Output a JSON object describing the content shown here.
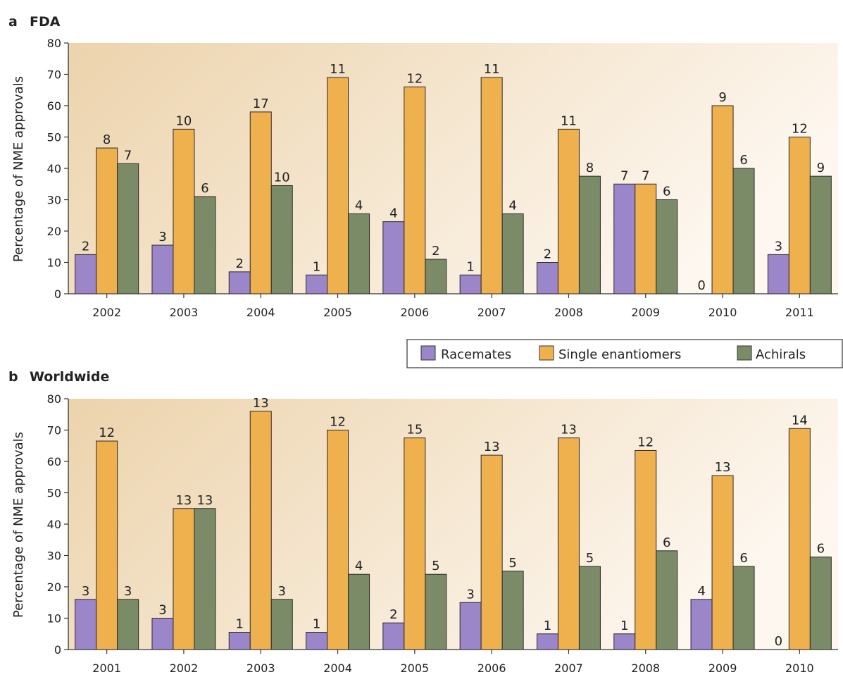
{
  "colors": {
    "racemates": "#9b86c9",
    "single_enantiomers": "#efb04e",
    "achirals": "#7c8b67",
    "background_start": "#ecd3ac",
    "background_end": "#fdf7ef"
  },
  "legend": {
    "items": [
      {
        "key": "racemates",
        "label": "Racemates"
      },
      {
        "key": "single_enantiomers",
        "label": "Single enantiomers"
      },
      {
        "key": "achirals",
        "label": "Achirals"
      }
    ]
  },
  "chart_data": [
    {
      "type": "bar",
      "panel_letter": "a",
      "title": "FDA",
      "ylabel": "Percentage of NME approvals",
      "xlabel": "",
      "ylim": [
        0,
        80
      ],
      "yticks": [
        0,
        10,
        20,
        30,
        40,
        50,
        60,
        70,
        80
      ],
      "grid": false,
      "categories": [
        "2002",
        "2003",
        "2004",
        "2005",
        "2006",
        "2007",
        "2008",
        "2009",
        "2010",
        "2011"
      ],
      "series": [
        {
          "name": "Racemates",
          "key": "racemates",
          "values": [
            12.5,
            15.5,
            7,
            6,
            23,
            6,
            10,
            35,
            0,
            12.5
          ],
          "labels": [
            "2",
            "3",
            "2",
            "1",
            "4",
            "1",
            "2",
            "7",
            "0",
            "3"
          ]
        },
        {
          "name": "Single enantiomers",
          "key": "single_enantiomers",
          "values": [
            46.5,
            52.5,
            58,
            69,
            66,
            69,
            52.5,
            35,
            60,
            50
          ],
          "labels": [
            "8",
            "10",
            "17",
            "11",
            "12",
            "11",
            "11",
            "7",
            "9",
            "12"
          ]
        },
        {
          "name": "Achirals",
          "key": "achirals",
          "values": [
            41.5,
            31,
            34.5,
            25.5,
            11,
            25.5,
            37.5,
            30,
            40,
            37.5
          ],
          "labels": [
            "7",
            "6",
            "10",
            "4",
            "2",
            "4",
            "8",
            "6",
            "6",
            "9"
          ]
        }
      ]
    },
    {
      "type": "bar",
      "panel_letter": "b",
      "title": "Worldwide",
      "ylabel": "Percentage of NME approvals",
      "xlabel": "",
      "ylim": [
        0,
        80
      ],
      "yticks": [
        0,
        10,
        20,
        30,
        40,
        50,
        60,
        70,
        80
      ],
      "grid": false,
      "categories": [
        "2001",
        "2002",
        "2003",
        "2004",
        "2005",
        "2006",
        "2007",
        "2008",
        "2009",
        "2010"
      ],
      "series": [
        {
          "name": "Racemates",
          "key": "racemates",
          "values": [
            16,
            10,
            5.5,
            5.5,
            8.5,
            15,
            5,
            5,
            16,
            0
          ],
          "labels": [
            "3",
            "3",
            "1",
            "1",
            "2",
            "3",
            "1",
            "1",
            "4",
            "0"
          ]
        },
        {
          "name": "Single enantiomers",
          "key": "single_enantiomers",
          "values": [
            66.5,
            45,
            76,
            70,
            67.5,
            62,
            67.5,
            63.5,
            55.5,
            70.5
          ],
          "labels": [
            "12",
            "13",
            "13",
            "12",
            "15",
            "13",
            "13",
            "12",
            "13",
            "14"
          ]
        },
        {
          "name": "Achirals",
          "key": "achirals",
          "values": [
            16,
            45,
            16,
            24,
            24,
            25,
            26.5,
            31.5,
            26.5,
            29.5
          ],
          "labels": [
            "3",
            "13",
            "3",
            "4",
            "5",
            "5",
            "5",
            "6",
            "6",
            "6"
          ]
        }
      ]
    }
  ]
}
